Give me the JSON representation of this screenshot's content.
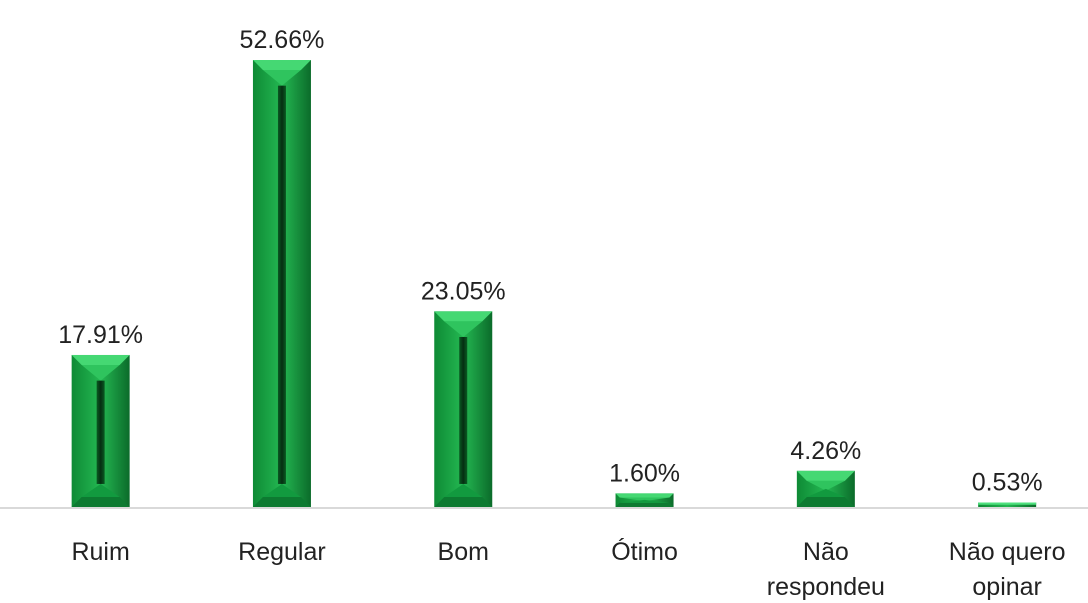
{
  "chart_data": {
    "type": "bar",
    "title": "",
    "xlabel": "",
    "ylabel": "",
    "categories": [
      [
        "Ruim"
      ],
      [
        "Regular"
      ],
      [
        "Bom"
      ],
      [
        "Ótimo"
      ],
      [
        "Não",
        "respondeu"
      ],
      [
        "Não quero",
        "opinar"
      ]
    ],
    "values": [
      17.91,
      52.66,
      23.05,
      1.6,
      4.26,
      0.53
    ],
    "value_labels": [
      "17.91%",
      "52.66%",
      "23.05%",
      "1.60%",
      "4.26%",
      "0.53%"
    ],
    "unit": "%",
    "ylim": [
      0,
      52.66
    ],
    "grid": false,
    "legend": "none",
    "colors": {
      "bar_light": "#3ed16a",
      "bar_mid": "#17a443",
      "bar_dark": "#0b6b2a",
      "bar_deep": "#063d17",
      "axis": "#d9d9d9",
      "text": "#222222"
    }
  }
}
